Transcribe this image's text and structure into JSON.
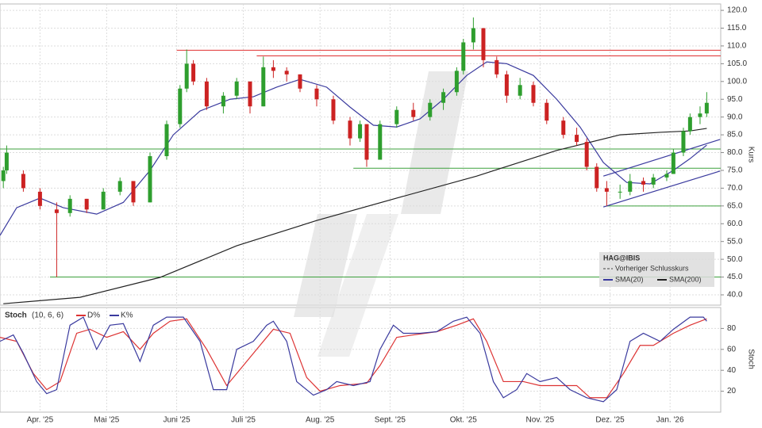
{
  "chart_data": [
    {
      "type": "candlestick",
      "title": "HAG@IBIS",
      "y_label": "Kurs",
      "x": [
        1,
        2,
        7,
        12,
        17,
        21,
        26,
        31,
        36,
        40,
        45,
        50,
        54,
        56,
        58,
        62,
        67,
        71,
        75,
        79,
        82,
        86,
        90,
        95,
        100,
        105,
        108,
        110,
        114,
        119,
        124,
        129,
        133,
        137,
        139,
        142,
        145,
        149,
        152,
        156,
        160,
        164,
        169,
        173,
        176,
        179,
        182,
        186,
        189,
        193,
        196,
        200,
        202,
        205,
        207,
        210,
        212
      ],
      "open": [
        72,
        75,
        74,
        69,
        64,
        63,
        67,
        64,
        69,
        72,
        66,
        79,
        88,
        98,
        105,
        100,
        93,
        96,
        100,
        93,
        104,
        103,
        102,
        98,
        95,
        89,
        84,
        88,
        78,
        88,
        92,
        90,
        94,
        97,
        103,
        111,
        115,
        106,
        102,
        96,
        99,
        94,
        89,
        85,
        83,
        76,
        70,
        69,
        69,
        72,
        71,
        73,
        74,
        80,
        86,
        90,
        91
      ],
      "high": [
        76,
        82,
        75,
        70,
        66,
        68,
        67,
        70,
        73,
        72,
        80,
        89,
        99,
        109,
        106,
        101,
        97,
        101,
        100,
        107,
        106,
        104,
        102,
        99,
        96,
        90,
        89,
        88,
        89,
        93,
        94,
        95,
        98,
        104,
        112,
        118,
        115,
        107,
        103,
        101,
        100,
        95,
        90,
        87,
        84,
        77,
        72,
        71,
        74,
        73,
        74,
        75,
        81,
        87,
        91,
        93,
        97
      ],
      "low": [
        70,
        74,
        69,
        64,
        45,
        62,
        63,
        64,
        68,
        65,
        66,
        78,
        87,
        97,
        99,
        92,
        91,
        95,
        91,
        93,
        101,
        100,
        97,
        93,
        88,
        82,
        83,
        76,
        78,
        87,
        89,
        89,
        92,
        96,
        102,
        109,
        104,
        101,
        94,
        95,
        93,
        88,
        84,
        82,
        75,
        69,
        65,
        67,
        68,
        69,
        70,
        72,
        74,
        79,
        85,
        88,
        90
      ],
      "close": [
        75,
        80,
        70,
        65,
        63,
        67,
        64,
        69,
        72,
        66,
        79,
        88,
        98,
        105,
        100,
        93,
        96,
        100,
        93,
        104,
        103,
        102,
        98,
        95,
        89,
        84,
        88,
        78,
        88,
        92,
        90,
        94,
        97,
        103,
        111,
        115,
        106,
        102,
        96,
        99,
        94,
        89,
        85,
        83,
        76,
        70,
        69,
        69,
        72,
        71,
        73,
        74,
        80,
        86,
        90,
        91,
        94
      ],
      "up_color": "#2e9e2e",
      "down_color": "#cc2222",
      "series": [
        {
          "name": "SMA(20)",
          "color": "#3a3a9e",
          "x": [
            0,
            5,
            12,
            19,
            29,
            37,
            45,
            52,
            60,
            69,
            76,
            83,
            90,
            98,
            105,
            112,
            119,
            126,
            133,
            140,
            146,
            152,
            160,
            167,
            174,
            181,
            188,
            195,
            202,
            207,
            212
          ],
          "values": [
            56.7,
            64.5,
            67.2,
            64.5,
            62.7,
            66,
            75,
            85,
            91.7,
            95,
            95.7,
            98.4,
            100.6,
            98.4,
            92.8,
            87.7,
            87.2,
            89.5,
            95,
            101.7,
            105.5,
            105,
            101.7,
            95,
            87.2,
            77.2,
            71.6,
            71.2,
            75,
            78.3,
            82.1
          ]
        },
        {
          "name": "SMA(200)",
          "color": "#222222",
          "x": [
            1,
            24,
            48,
            71,
            95,
            119,
            143,
            167,
            186,
            198,
            207,
            212
          ],
          "values": [
            37.5,
            39.3,
            44.9,
            53.8,
            60.9,
            67.2,
            73.4,
            80.6,
            85,
            85.7,
            86.1,
            86.8
          ]
        }
      ],
      "levels": [
        {
          "value": 108.8,
          "from": 53,
          "color": "#e03030"
        },
        {
          "value": 107.2,
          "from": 77,
          "color": "#e03030"
        },
        {
          "value": 81,
          "from": 0,
          "color": "#3ca03c"
        },
        {
          "value": 75.6,
          "from": 106,
          "color": "#3ca03c"
        },
        {
          "value": 65,
          "from": 182,
          "color": "#3ca03c"
        },
        {
          "value": 45,
          "from": 15,
          "color": "#3ca03c"
        }
      ],
      "trendlines": [
        {
          "x": [
            181,
            216
          ],
          "values": [
            64.7,
            74.8
          ],
          "color": "#3a3a9e"
        },
        {
          "x": [
            181,
            216
          ],
          "values": [
            73.4,
            83.7
          ],
          "color": "#3a3a9e"
        }
      ],
      "legend_extra": "Vorheriger Schlusskurs",
      "xlim": [
        0,
        216.2
      ],
      "ylim": [
        37.1,
        121.8
      ],
      "yticks": [
        {
          "value": 40,
          "label": "40.0"
        },
        {
          "value": 45,
          "label": "45.0"
        },
        {
          "value": 50,
          "label": "50.0"
        },
        {
          "value": 55,
          "label": "55.0"
        },
        {
          "value": 60,
          "label": "60.0"
        },
        {
          "value": 65,
          "label": "65.0"
        },
        {
          "value": 70,
          "label": "70.0"
        },
        {
          "value": 75,
          "label": "75.0"
        },
        {
          "value": 80,
          "label": "80.0"
        },
        {
          "value": 85,
          "label": "85.0"
        },
        {
          "value": 90,
          "label": "90.0"
        },
        {
          "value": 95,
          "label": "95.0"
        },
        {
          "value": 100,
          "label": "100.0"
        },
        {
          "value": 105,
          "label": "105.0"
        },
        {
          "value": 110,
          "label": "110.0"
        },
        {
          "value": 115,
          "label": "115.0"
        },
        {
          "value": 120,
          "label": "120.0"
        }
      ],
      "xticks": [
        {
          "value": 12,
          "label": "Apr. '25"
        },
        {
          "value": 32,
          "label": "Mai '25"
        },
        {
          "value": 53,
          "label": "Juni '25"
        },
        {
          "value": 73,
          "label": "Juli '25"
        },
        {
          "value": 96,
          "label": "Aug. '25"
        },
        {
          "value": 117,
          "label": "Sept. '25"
        },
        {
          "value": 139,
          "label": "Okt. '25"
        },
        {
          "value": 162,
          "label": "Nov. '25"
        },
        {
          "value": 183,
          "label": "Dez. '25"
        },
        {
          "value": 201,
          "label": "Jan. '26"
        }
      ],
      "grid": true
    },
    {
      "type": "line",
      "title": "Stoch",
      "subtitle": "(10, 6, 6)",
      "y_label": "Stoch",
      "series": [
        {
          "name": "D%",
          "color": "#dd3333",
          "x": [
            0,
            5,
            10,
            14,
            18,
            23,
            27,
            32,
            37,
            42,
            46,
            51,
            56,
            62,
            68,
            73,
            77,
            82,
            87,
            92,
            96,
            102,
            110,
            114,
            119,
            124,
            131,
            137,
            142,
            146,
            151,
            157,
            162,
            167,
            173,
            177,
            182,
            187,
            192,
            196,
            202,
            207,
            212
          ],
          "values": [
            71.5,
            67.7,
            36.9,
            21.5,
            29.2,
            75.4,
            79.2,
            71.5,
            76.9,
            60,
            75.4,
            86.9,
            89.2,
            60,
            25.4,
            44.6,
            60,
            79.2,
            75.4,
            33.1,
            20,
            25.4,
            27.7,
            44.6,
            71.5,
            73.8,
            76.9,
            83.1,
            89.2,
            67.7,
            29.2,
            29.2,
            25.4,
            25.4,
            25.4,
            13.8,
            13.8,
            36.9,
            63.8,
            63.8,
            75.4,
            83.1,
            89.2
          ]
        },
        {
          "name": "K%",
          "color": "#3a3a9e",
          "x": [
            0,
            4,
            7,
            11,
            14,
            17,
            21,
            25,
            29,
            33,
            37,
            42,
            46,
            50,
            55,
            60,
            64,
            68,
            71,
            76,
            80,
            82,
            86,
            89,
            94,
            98,
            101,
            106,
            111,
            114,
            118,
            121,
            126,
            131,
            136,
            140,
            144,
            148,
            151,
            155,
            158,
            162,
            167,
            171,
            176,
            181,
            185,
            189,
            193,
            198,
            202,
            207,
            211,
            212
          ],
          "values": [
            67.7,
            73.8,
            56.2,
            29.2,
            17.7,
            21.5,
            83.1,
            90.8,
            60,
            83.1,
            84.6,
            48.5,
            83.1,
            90.8,
            90.8,
            67.7,
            21.5,
            21.5,
            60,
            67.7,
            83.1,
            86.9,
            67.7,
            29.2,
            16.2,
            21.5,
            29.2,
            25.4,
            29.2,
            60,
            83.1,
            75.4,
            75.4,
            76.9,
            86.9,
            90.8,
            75.4,
            29.2,
            13.8,
            21.5,
            36.9,
            29.2,
            33.1,
            21.5,
            13.8,
            10,
            21.5,
            67.7,
            75.4,
            67.7,
            79.2,
            90.8,
            90.8,
            86.9
          ]
        }
      ],
      "xlim": [
        0,
        216.2
      ],
      "ylim": [
        0,
        100
      ],
      "yticks": [
        20,
        40,
        60,
        80
      ],
      "grid": true
    }
  ]
}
